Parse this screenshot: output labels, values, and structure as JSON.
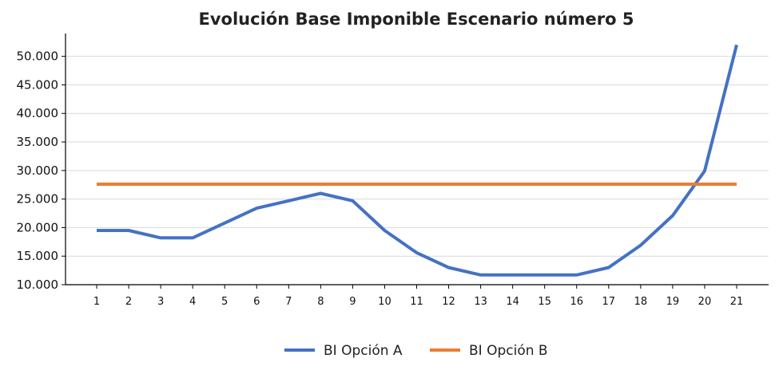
{
  "chart_data": {
    "type": "line",
    "title": "Evolución Base Imponible Escenario número 5",
    "categories": [
      "1",
      "2",
      "3",
      "4",
      "5",
      "6",
      "7",
      "8",
      "9",
      "10",
      "11",
      "12",
      "13",
      "14",
      "15",
      "16",
      "17",
      "18",
      "19",
      "20",
      "21"
    ],
    "series": [
      {
        "name": "BI Opción A",
        "color": "#4472c4",
        "values": [
          19500,
          19500,
          18200,
          18200,
          20800,
          23400,
          24700,
          26000,
          24700,
          19500,
          15600,
          13000,
          11700,
          11700,
          11700,
          11700,
          13000,
          16900,
          22100,
          29900,
          52000
        ]
      },
      {
        "name": "BI Opción B",
        "color": "#ed7d31",
        "values": [
          27600,
          27600,
          27600,
          27600,
          27600,
          27600,
          27600,
          27600,
          27600,
          27600,
          27600,
          27600,
          27600,
          27600,
          27600,
          27600,
          27600,
          27600,
          27600,
          27600,
          27600
        ]
      }
    ],
    "yticks": [
      "10.000",
      "15.000",
      "20.000",
      "25.000",
      "30.000",
      "35.000",
      "40.000",
      "45.000",
      "50.000"
    ],
    "ytick_values": [
      10000,
      15000,
      20000,
      25000,
      30000,
      35000,
      40000,
      45000,
      50000
    ],
    "ylim": [
      10000,
      54000
    ],
    "grid": "horizontal",
    "legend_position": "bottom-center"
  }
}
